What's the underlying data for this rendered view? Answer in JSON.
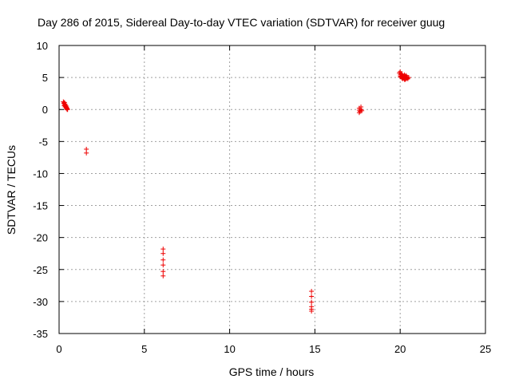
{
  "chart_data": {
    "type": "scatter",
    "title": "Day 286 of 2015, Sidereal Day-to-day VTEC variation (SDTVAR) for receiver guug",
    "xlabel": "GPS time / hours",
    "ylabel": "SDTVAR / TECUs",
    "xlim": [
      0,
      25
    ],
    "ylim": [
      -35,
      10
    ],
    "x_ticks": [
      0,
      5,
      10,
      15,
      20,
      25
    ],
    "y_ticks": [
      10,
      5,
      0,
      -5,
      -10,
      -15,
      -20,
      -25,
      -30,
      -35
    ],
    "grid": true,
    "marker": "plus",
    "colors": {
      "points": "#ee0000",
      "grid": "#a0a0a0",
      "axis": "#000000"
    },
    "series": [
      {
        "x": [
          0.25,
          0.28,
          0.3,
          0.32,
          0.34,
          0.36,
          0.38,
          0.4,
          0.42,
          0.44,
          0.46,
          0.48,
          0.5,
          0.3,
          0.35,
          0.42,
          0.47,
          1.6,
          1.6,
          6.1,
          6.1,
          6.1,
          6.1,
          6.1,
          6.1,
          14.8,
          14.8,
          14.8,
          14.8,
          14.8,
          14.8,
          17.6,
          17.6,
          17.6,
          17.65,
          17.7,
          17.7,
          17.75,
          19.95,
          20.0,
          20.0,
          20.05,
          20.05,
          20.1,
          20.1,
          20.15,
          20.15,
          20.2,
          20.2,
          20.25,
          20.25,
          20.3,
          20.3,
          20.35,
          20.35,
          20.4,
          20.4,
          20.45,
          20.5,
          20.0,
          20.1,
          20.2,
          20.3,
          20.4
        ],
        "y": [
          1.2,
          1.0,
          0.9,
          1.1,
          0.7,
          0.8,
          0.5,
          0.6,
          0.3,
          0.4,
          0.2,
          0.1,
          0.0,
          0.6,
          0.4,
          0.2,
          0.0,
          -6.2,
          -6.8,
          -21.8,
          -22.5,
          -23.5,
          -24.3,
          -25.3,
          -26.0,
          -28.4,
          -29.2,
          -30.1,
          -30.8,
          -31.2,
          -31.5,
          -0.1,
          -0.5,
          0.2,
          -0.3,
          0.0,
          0.4,
          -0.2,
          5.7,
          5.4,
          5.9,
          5.2,
          5.6,
          5.0,
          5.5,
          4.8,
          5.3,
          5.1,
          4.9,
          5.4,
          4.7,
          5.2,
          5.0,
          4.8,
          5.3,
          4.9,
          5.1,
          4.8,
          5.0,
          5.1,
          4.9,
          5.2,
          4.7,
          5.0
        ]
      }
    ]
  }
}
